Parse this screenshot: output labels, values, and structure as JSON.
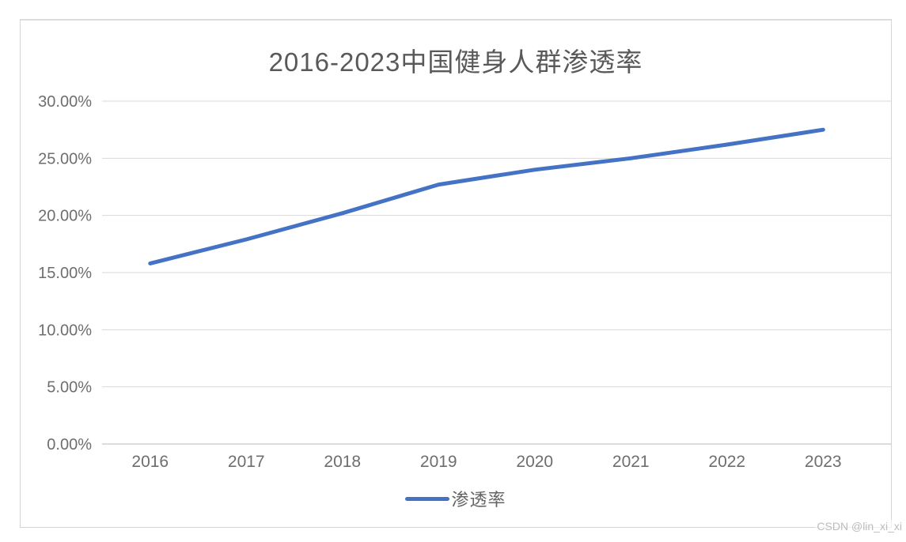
{
  "page": {
    "watermark": "CSDN @lin_xi_xi"
  },
  "chart_data": {
    "type": "line",
    "title": "2016-2023中国健身人群渗透率",
    "categories": [
      "2016",
      "2017",
      "2018",
      "2019",
      "2020",
      "2021",
      "2022",
      "2023"
    ],
    "series": [
      {
        "name": "渗透率",
        "values": [
          15.8,
          17.9,
          20.2,
          22.7,
          24.0,
          25.0,
          26.2,
          27.5
        ],
        "unit": "%",
        "color": "#4472C4"
      }
    ],
    "xlabel": "",
    "ylabel": "",
    "y_axis": {
      "min": 0,
      "max": 30,
      "step": 5,
      "tick_labels": [
        "0.00%",
        "5.00%",
        "10.00%",
        "15.00%",
        "20.00%",
        "25.00%",
        "30.00%"
      ]
    },
    "grid": true,
    "legend_position": "bottom",
    "colors": {
      "series_line": "#4472C4",
      "gridline": "#d9d9d9",
      "axis_line": "#d0d0d0",
      "title_text": "#595959",
      "axis_text": "#6e6e6e",
      "frame_border": "#d4d4d4",
      "watermark_text": "#bcbcbc"
    }
  }
}
